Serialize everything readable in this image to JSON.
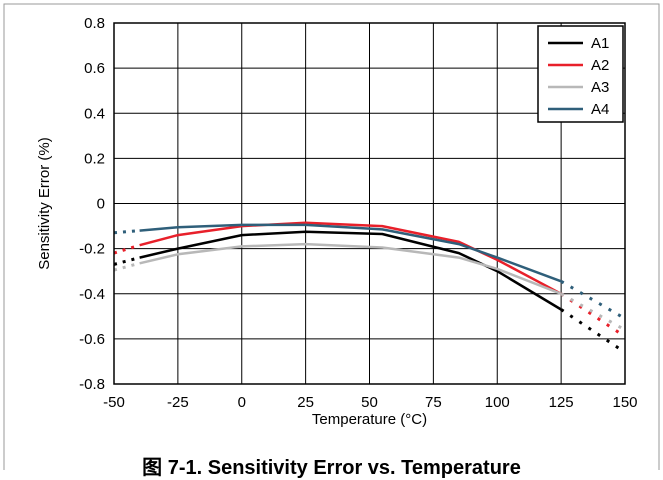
{
  "caption": "图 7-1. Sensitivity Error vs. Temperature",
  "chart_data": {
    "type": "line",
    "xlabel": "Temperature (°C)",
    "ylabel": "Sensitivity Error (%)",
    "xlim": [
      -50,
      150
    ],
    "ylim": [
      -0.8,
      0.8
    ],
    "x_ticks": [
      -50,
      -25,
      0,
      25,
      50,
      75,
      100,
      125,
      150
    ],
    "x_tick_labels": [
      "-50",
      "-25",
      "0",
      "25",
      "50",
      "75",
      "100",
      "125",
      "150"
    ],
    "y_ticks": [
      -0.8,
      -0.6,
      -0.4,
      -0.2,
      0,
      0.2,
      0.4,
      0.6,
      0.8
    ],
    "y_tick_labels": [
      "-0.8",
      "-0.6",
      "-0.4",
      "-0.2",
      "0",
      "0.2",
      "0.4",
      "0.6",
      "0.8"
    ],
    "grid": true,
    "legend_position": "top-right",
    "series": [
      {
        "name": "A1",
        "color": "#000000",
        "solid": [
          [
            -40,
            -0.24
          ],
          [
            -25,
            -0.2
          ],
          [
            0,
            -0.14
          ],
          [
            25,
            -0.125
          ],
          [
            55,
            -0.135
          ],
          [
            85,
            -0.22
          ],
          [
            100,
            -0.3
          ],
          [
            125,
            -0.47
          ]
        ],
        "dotted_low": [
          [
            -50,
            -0.27
          ],
          [
            -40,
            -0.24
          ]
        ],
        "dotted_high": [
          [
            125,
            -0.47
          ],
          [
            150,
            -0.66
          ]
        ]
      },
      {
        "name": "A2",
        "color": "#e8202a",
        "solid": [
          [
            -40,
            -0.185
          ],
          [
            -25,
            -0.14
          ],
          [
            0,
            -0.1
          ],
          [
            25,
            -0.085
          ],
          [
            55,
            -0.1
          ],
          [
            85,
            -0.17
          ],
          [
            100,
            -0.25
          ],
          [
            125,
            -0.4
          ]
        ],
        "dotted_low": [
          [
            -50,
            -0.22
          ],
          [
            -40,
            -0.185
          ]
        ],
        "dotted_high": [
          [
            125,
            -0.4
          ],
          [
            150,
            -0.59
          ]
        ]
      },
      {
        "name": "A3",
        "color": "#b8b8b8",
        "solid": [
          [
            -40,
            -0.265
          ],
          [
            -25,
            -0.225
          ],
          [
            0,
            -0.19
          ],
          [
            25,
            -0.18
          ],
          [
            55,
            -0.195
          ],
          [
            85,
            -0.24
          ],
          [
            100,
            -0.29
          ],
          [
            125,
            -0.4
          ]
        ],
        "dotted_low": [
          [
            -50,
            -0.295
          ],
          [
            -40,
            -0.265
          ]
        ],
        "dotted_high": [
          [
            125,
            -0.4
          ],
          [
            150,
            -0.56
          ]
        ]
      },
      {
        "name": "A4",
        "color": "#2f5f7a",
        "solid": [
          [
            -40,
            -0.12
          ],
          [
            -25,
            -0.105
          ],
          [
            0,
            -0.095
          ],
          [
            25,
            -0.095
          ],
          [
            55,
            -0.115
          ],
          [
            85,
            -0.18
          ],
          [
            100,
            -0.24
          ],
          [
            125,
            -0.345
          ]
        ],
        "dotted_low": [
          [
            -50,
            -0.13
          ],
          [
            -40,
            -0.12
          ]
        ],
        "dotted_high": [
          [
            125,
            -0.345
          ],
          [
            150,
            -0.51
          ]
        ]
      }
    ]
  }
}
